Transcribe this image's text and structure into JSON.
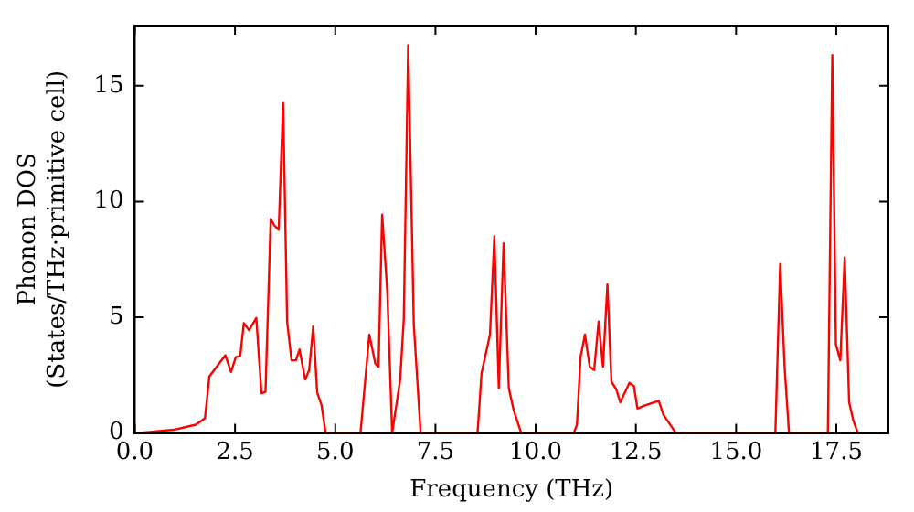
{
  "chart_data": {
    "type": "line",
    "xlabel": "Frequency (THz)",
    "ylabel": "Phonon DOS\n(States/THz·primitive cell)",
    "xlim": [
      0,
      18.8
    ],
    "ylim": [
      0,
      17.6
    ],
    "xticks": [
      {
        "value": 0,
        "label": "0.0"
      },
      {
        "value": 2.5,
        "label": "2.5"
      },
      {
        "value": 5,
        "label": "5.0"
      },
      {
        "value": 7.5,
        "label": "7.5"
      },
      {
        "value": 10,
        "label": "10.0"
      },
      {
        "value": 12.5,
        "label": "12.5"
      },
      {
        "value": 15,
        "label": "15.0"
      },
      {
        "value": 17.5,
        "label": "17.5"
      }
    ],
    "yticks": [
      0,
      5,
      10,
      15
    ],
    "grid": false,
    "legend": false,
    "marker": "none",
    "line_style": "solid",
    "series": [
      {
        "color": "#ff0000",
        "x": [
          0.05,
          0.97,
          1.52,
          1.75,
          1.86,
          2.26,
          2.4,
          2.52,
          2.63,
          2.72,
          2.85,
          3.03,
          3.16,
          3.26,
          3.39,
          3.48,
          3.59,
          3.7,
          3.8,
          3.91,
          4.02,
          4.11,
          4.25,
          4.35,
          4.45,
          4.55,
          4.66,
          4.76,
          5.63,
          5.85,
          6.0,
          6.08,
          6.17,
          6.3,
          6.42,
          6.62,
          6.71,
          6.82,
          6.96,
          7.13,
          8.55,
          8.65,
          8.86,
          8.97,
          9.08,
          9.2,
          9.33,
          9.45,
          9.64,
          10.95,
          11.03,
          11.12,
          11.23,
          11.35,
          11.46,
          11.57,
          11.68,
          11.79,
          11.89,
          12.01,
          12.11,
          12.34,
          12.45,
          12.54,
          12.73,
          13.07,
          13.19,
          13.5,
          15.98,
          16.1,
          16.21,
          16.32,
          17.29,
          17.4,
          17.49,
          17.6,
          17.71,
          17.82,
          17.93,
          18.04
        ],
        "values": [
          0,
          0.14,
          0.36,
          0.64,
          2.44,
          3.36,
          2.64,
          3.28,
          3.33,
          4.75,
          4.44,
          4.97,
          1.72,
          1.78,
          9.25,
          8.97,
          8.78,
          14.25,
          4.81,
          3.14,
          3.14,
          3.61,
          2.31,
          2.72,
          4.61,
          1.75,
          1.19,
          0,
          0,
          4.25,
          3.0,
          2.86,
          9.44,
          6.06,
          0,
          2.31,
          4.94,
          16.75,
          4.67,
          0,
          0,
          2.58,
          4.25,
          8.5,
          1.94,
          8.19,
          1.94,
          1.0,
          0,
          0,
          0.36,
          3.28,
          4.25,
          2.86,
          2.72,
          4.81,
          2.86,
          6.42,
          2.22,
          1.89,
          1.33,
          2.17,
          2.03,
          1.06,
          1.19,
          1.39,
          0.78,
          0,
          0,
          7.3,
          2.86,
          0,
          0,
          16.33,
          3.83,
          3.14,
          7.58,
          1.33,
          0.5,
          0
        ]
      }
    ]
  }
}
